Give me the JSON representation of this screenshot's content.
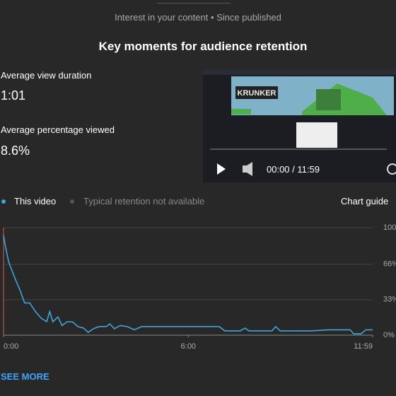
{
  "header": {
    "subtitle": "Interest in your content • Since published",
    "title": "Key moments for audience retention"
  },
  "stats": [
    {
      "label": "Average view duration",
      "value": "1:01"
    },
    {
      "label": "Average percentage viewed",
      "value": "8.6%"
    }
  ],
  "player": {
    "time": "00:00 / 11:59"
  },
  "legend": {
    "items": [
      "This video",
      "Typical retention not available"
    ],
    "guide": "Chart guide"
  },
  "chart_data": {
    "type": "line",
    "x": [
      0,
      4,
      10,
      15,
      23,
      32,
      41,
      51,
      62,
      73,
      84,
      90,
      96,
      106,
      114,
      124,
      134,
      145,
      156,
      165,
      175,
      186,
      200,
      207,
      216,
      227,
      241,
      255,
      269,
      289,
      324,
      379,
      420,
      431,
      461,
      470,
      478,
      523,
      530,
      539,
      599,
      633,
      675,
      682,
      696,
      706,
      719
    ],
    "series": [
      {
        "name": "This video",
        "color": "#3ea6d8",
        "values": [
          93,
          82,
          68,
          62,
          52,
          42,
          30,
          30,
          22,
          16,
          12.5,
          22,
          12.5,
          17,
          9,
          12.5,
          12.5,
          8,
          6.6,
          2.6,
          6,
          8,
          8,
          10.5,
          6,
          9,
          8,
          5,
          8,
          8,
          8,
          8,
          8,
          4,
          4,
          6.6,
          4,
          4,
          8,
          4,
          4,
          5,
          5,
          1.3,
          1.3,
          5,
          5
        ]
      }
    ],
    "xlim": [
      0,
      719
    ],
    "xticks": [
      {
        "value": 0,
        "label": "0:00"
      },
      {
        "value": 360,
        "label": "6:00"
      },
      {
        "value": 719,
        "label": "11:59"
      }
    ],
    "ylim": [
      0,
      100
    ],
    "yticks": [
      {
        "value": 0,
        "label": "0%"
      },
      {
        "value": 33,
        "label": "33%"
      },
      {
        "value": 66,
        "label": "66%"
      },
      {
        "value": 100,
        "label": "100%"
      }
    ],
    "grid": true
  },
  "footer": {
    "link": "SEE MORE"
  }
}
